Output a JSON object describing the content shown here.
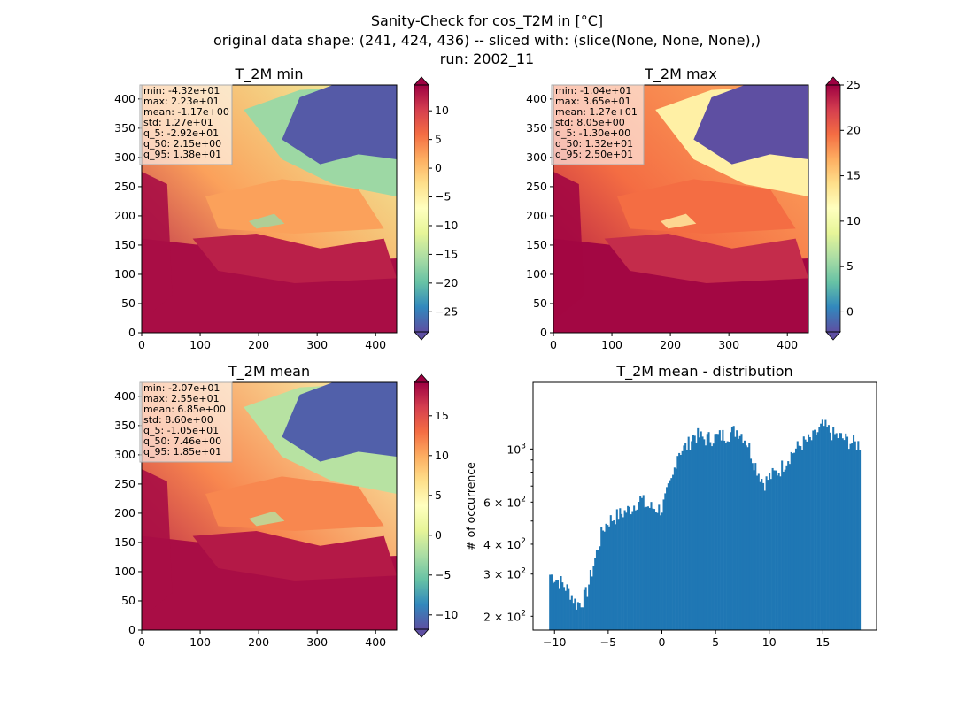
{
  "figure": {
    "title_lines": [
      "Sanity-Check for cos_T2M in [°C]",
      "original data shape: (241, 424, 436) -- sliced with: (slice(None, None, None),)",
      "run: 2002_11"
    ]
  },
  "colormap": {
    "name": "Spectral_r",
    "stops": [
      "#5e4fa2",
      "#3288bd",
      "#66c2a5",
      "#abdda4",
      "#e6f598",
      "#ffffbf",
      "#fee08b",
      "#fdae61",
      "#f46d43",
      "#d53e4f",
      "#9e0142"
    ]
  },
  "chart_data": [
    {
      "type": "heatmap",
      "title": "T_2M min",
      "x_ticks": [
        0,
        100,
        200,
        300,
        400
      ],
      "y_ticks": [
        0,
        50,
        100,
        150,
        200,
        250,
        300,
        350,
        400
      ],
      "xlim": [
        0,
        436
      ],
      "ylim": [
        0,
        424
      ],
      "colorbar": {
        "vmin": -28.5,
        "vmax": 14.5,
        "ticks": [
          10,
          5,
          0,
          -5,
          -10,
          -15,
          -20,
          -25
        ],
        "tick_labels": [
          "10",
          "5",
          "0",
          "−5",
          "−10",
          "−15",
          "−20",
          "−25"
        ],
        "extend": "both"
      },
      "stats": [
        "min: -4.32e+01",
        "max: 2.23e+01",
        "mean: -1.17e+00",
        "std: 1.27e+01",
        "q_5: -2.92e+01",
        "q_50: 2.15e+00",
        "q_95: 1.38e+01"
      ]
    },
    {
      "type": "heatmap",
      "title": "T_2M max",
      "x_ticks": [
        0,
        100,
        200,
        300,
        400
      ],
      "y_ticks": [
        0,
        50,
        100,
        150,
        200,
        250,
        300,
        350,
        400
      ],
      "xlim": [
        0,
        436
      ],
      "ylim": [
        0,
        424
      ],
      "colorbar": {
        "vmin": -2.2,
        "vmax": 25,
        "ticks": [
          25,
          20,
          15,
          10,
          5,
          0
        ],
        "tick_labels": [
          "25",
          "20",
          "15",
          "10",
          "5",
          "0"
        ],
        "extend": "both"
      },
      "stats": [
        "min: -1.04e+01",
        "max: 3.65e+01",
        "mean: 1.27e+01",
        "std: 8.05e+00",
        "q_5: -1.30e+00",
        "q_50: 1.32e+01",
        "q_95: 2.50e+01"
      ]
    },
    {
      "type": "heatmap",
      "title": "T_2M mean",
      "x_ticks": [
        0,
        100,
        200,
        300,
        400
      ],
      "y_ticks": [
        0,
        50,
        100,
        150,
        200,
        250,
        300,
        350,
        400
      ],
      "xlim": [
        0,
        436
      ],
      "ylim": [
        0,
        424
      ],
      "colorbar": {
        "vmin": -11.8,
        "vmax": 19.2,
        "ticks": [
          15,
          10,
          5,
          0,
          -5,
          -10
        ],
        "tick_labels": [
          "15",
          "10",
          "5",
          "0",
          "−5",
          "−10"
        ],
        "extend": "both"
      },
      "stats": [
        "min: -2.07e+01",
        "max: 2.55e+01",
        "mean: 6.85e+00",
        "std: 8.60e+00",
        "q_5: -1.05e+01",
        "q_50: 7.46e+00",
        "q_95: 1.85e+01"
      ]
    },
    {
      "type": "bar",
      "title": "T_2M mean - distribution",
      "ylabel": "# of occurrence",
      "color": "#1f77b4",
      "log_y": true,
      "xlim": [
        -12.0,
        20.0
      ],
      "ylim": [
        175,
        1900
      ],
      "x_ticks": [
        -10,
        -5,
        0,
        5,
        10,
        15
      ],
      "x_tick_labels": [
        "−10",
        "−5",
        "0",
        "5",
        "10",
        "15"
      ],
      "y_major_ticks": [
        1000
      ],
      "y_major_labels": [
        "10"
      ],
      "y_major_exponents": [
        "3"
      ],
      "y_minor_ticks": [
        200,
        300,
        400,
        600
      ],
      "y_minor_labels": [
        "2 × 10",
        "3 × 10",
        "4 × 10",
        "6 × 10"
      ],
      "y_minor_exponents": [
        "2",
        "2",
        "2",
        "2"
      ],
      "bin_start": -10.5,
      "bin_end": 18.5,
      "profile_x": [
        -10.5,
        -9.5,
        -8.5,
        -8.0,
        -7.5,
        -7.0,
        -6.5,
        -6.0,
        -5.5,
        -5.0,
        -4.0,
        -3.0,
        -2.0,
        -1.5,
        -1.0,
        0.0,
        1.0,
        1.5,
        2.0,
        2.5,
        3.0,
        4.0,
        5.0,
        6.0,
        7.0,
        7.5,
        8.0,
        8.5,
        9.0,
        9.5,
        10.0,
        11.0,
        12.0,
        13.0,
        14.0,
        15.0,
        16.0,
        17.0,
        18.0,
        18.5
      ],
      "profile_y": [
        300,
        280,
        250,
        225,
        230,
        250,
        310,
        380,
        460,
        500,
        530,
        560,
        620,
        580,
        570,
        560,
        750,
        980,
        1000,
        1050,
        1150,
        1100,
        1120,
        1150,
        1200,
        1150,
        1050,
        900,
        800,
        720,
        760,
        820,
        950,
        1050,
        1100,
        1250,
        1150,
        1100,
        1050,
        1050
      ]
    }
  ]
}
